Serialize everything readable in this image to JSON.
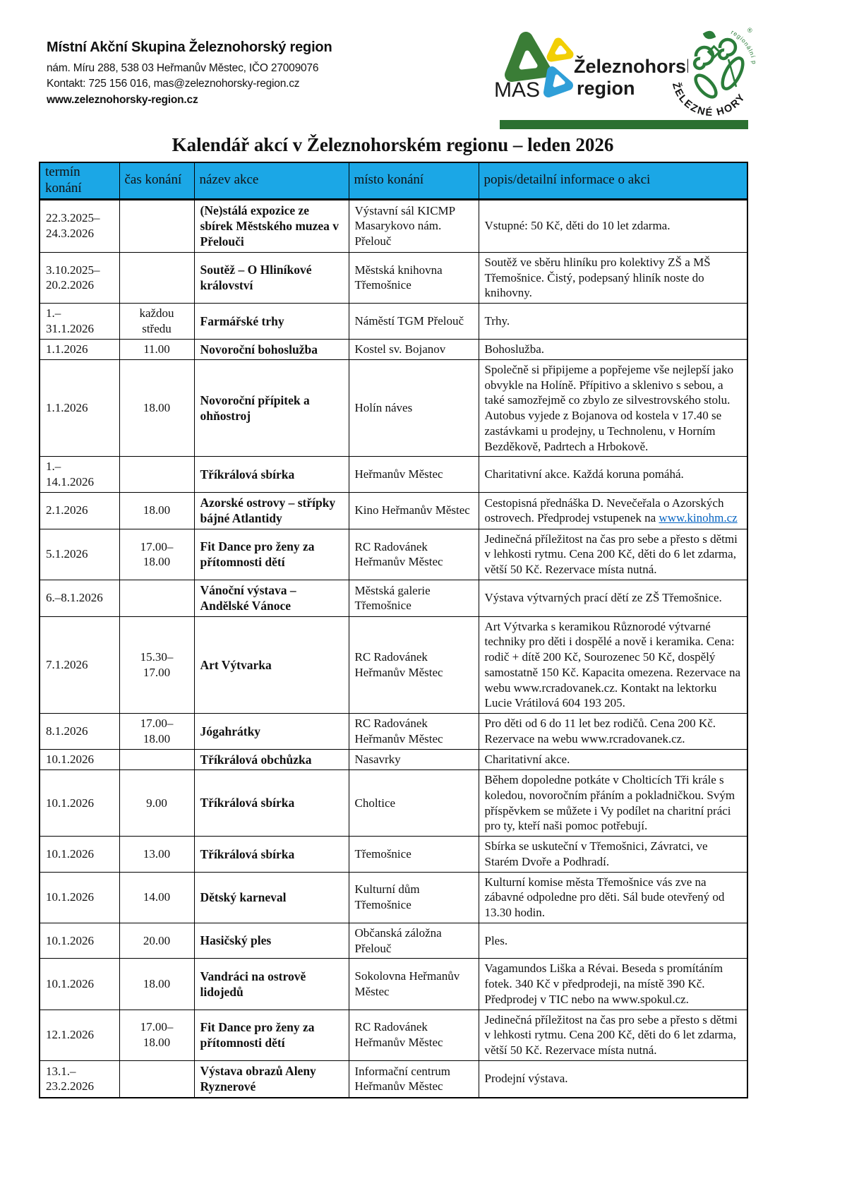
{
  "org": {
    "name": "Místní Akční Skupina Železnohorský region",
    "address": "nám. Míru 288, 538 03 Heřmanův Městec, IČO 27009076",
    "contact": "Kontakt: 725 156 016, mas@zeleznohorsky-region.cz",
    "website": "www.zeleznohorsky-region.cz"
  },
  "logos": {
    "mas": {
      "abbr": "MAS",
      "line1": "Železnohorský",
      "line2": "region",
      "green": "#3a7d36",
      "yellow": "#f2cf05",
      "blue": "#2f9fd8"
    },
    "round": {
      "arc_bottom": "ŽELEZNÉ HORY",
      "arc_top": "regionální produkt",
      "reg_mark": "®",
      "green": "#2b7d3a"
    }
  },
  "colors": {
    "header_bg": "#1ba7e6",
    "divider_green": "#2c7031",
    "link_blue": "#0563c1"
  },
  "title": "Kalendář akcí v Železnohorském regionu – leden 2026",
  "table": {
    "headers": [
      "termín\nkonání",
      "čas konání",
      "název akce",
      "místo konání",
      "popis/detailní informace o akci"
    ],
    "rows": [
      {
        "date": "22.3.2025–\n24.3.2026",
        "time": "",
        "name": "(Ne)stálá expozice ze sbírek Městského muzea v Přelouči",
        "place": "Výstavní sál KICMP Masarykovo nám. Přelouč",
        "desc": "Vstupné: 50 Kč, děti do 10 let zdarma."
      },
      {
        "date": "3.10.2025–\n20.2.2026",
        "time": "",
        "name": "Soutěž – O Hliníkové království",
        "place": "Městská knihovna Třemošnice",
        "desc": "Soutěž ve sběru hliníku pro kolektivy ZŠ a MŠ Třemošnice. Čistý, podepsaný hliník noste do knihovny."
      },
      {
        "date": "1.–\n31.1.2026",
        "time": "každou\nstředu",
        "name": "Farmářské trhy",
        "place": "Náměstí TGM Přelouč",
        "desc": "Trhy."
      },
      {
        "date": "1.1.2026",
        "time": "11.00",
        "name": "Novoroční bohoslužba",
        "place": "Kostel sv. Bojanov",
        "desc": "Bohoslužba."
      },
      {
        "date": "1.1.2026",
        "time": "18.00",
        "name": "Novoroční přípitek a ohňostroj",
        "place": "Holín náves",
        "desc": "Společně si připijeme a popřejeme vše nejlepší jako obvykle na Holíně. Přípitivo a sklenivo s sebou, a také samozřejmě co zbylo ze silvestrovského stolu. Autobus vyjede z Bojanova od kostela v 17.40 se zastávkami u prodejny, u Technolenu, v Horním Bezděkově, Padrtech a Hrbokově."
      },
      {
        "date": "1.–\n14.1.2026",
        "time": "",
        "name": "Tříkrálová sbírka",
        "place": "Heřmanův Městec",
        "desc": "Charitativní akce. Každá koruna pomáhá."
      },
      {
        "date": "2.1.2026",
        "time": "18.00",
        "name": "Azorské ostrovy – střípky bájné Atlantidy",
        "place": "Kino Heřmanův Městec",
        "desc": "Cestopisná přednáška D. Nevečeřala o Azorských ostrovech. Předprodej vstupenek na ",
        "link": "www.kinohm.cz"
      },
      {
        "date": "5.1.2026",
        "time": "17.00–\n18.00",
        "name": "Fit Dance pro ženy za přítomnosti dětí",
        "place": "RC Radovánek Heřmanův Městec",
        "desc": "Jedinečná příležitost na čas pro sebe a přesto s dětmi v lehkosti rytmu. Cena 200 Kč, děti do 6 let zdarma, větší 50 Kč. Rezervace místa nutná."
      },
      {
        "date": "6.–8.1.2026",
        "time": "",
        "name": "Vánoční výstava – Andělské Vánoce",
        "place": "Městská galerie Třemošnice",
        "desc": "Výstava výtvarných prací dětí ze ZŠ Třemošnice."
      },
      {
        "date": "7.1.2026",
        "time": "15.30–\n17.00",
        "name": "Art Výtvarka",
        "place": "RC Radovánek Heřmanův Městec",
        "desc": "Art Výtvarka s keramikou Různorodé výtvarné techniky pro děti i dospělé a nově i keramika. Cena: rodič + dítě 200 Kč, Sourozenec 50 Kč, dospělý samostatně 150 Kč. Kapacita omezena. Rezervace na webu www.rcradovanek.cz. Kontakt na lektorku Lucie Vrátilová 604 193 205."
      },
      {
        "date": "8.1.2026",
        "time": "17.00–\n18.00",
        "name": "Jógahrátky",
        "place": "RC Radovánek Heřmanův Městec",
        "desc": "Pro děti od 6 do 11 let bez rodičů. Cena 200 Kč. Rezervace na webu www.rcradovanek.cz."
      },
      {
        "date": "10.1.2026",
        "time": "",
        "name": "Tříkrálová obchůzka",
        "place": "Nasavrky",
        "desc": "Charitativní akce."
      },
      {
        "date": "10.1.2026",
        "time": "9.00",
        "name": "Tříkrálová sbírka",
        "place": "Choltice",
        "desc": "Během dopoledne potkáte v Cholticích Tři krále s koledou, novoročním přáním a pokladničkou. Svým příspěvkem se můžete i Vy podílet na charitní práci pro ty, kteří naši pomoc potřebují."
      },
      {
        "date": "10.1.2026",
        "time": "13.00",
        "name": "Tříkrálová sbírka",
        "place": "Třemošnice",
        "desc": "Sbírka se uskuteční v Třemošnici, Závratci, ve Starém Dvoře a Podhradí."
      },
      {
        "date": "10.1.2026",
        "time": "14.00",
        "name": "Dětský karneval",
        "place": "Kulturní dům Třemošnice",
        "desc": "Kulturní komise města Třemošnice vás zve na zábavné odpoledne pro děti. Sál bude otevřený od 13.30 hodin."
      },
      {
        "date": "10.1.2026",
        "time": "20.00",
        "name": "Hasičský ples",
        "place": "Občanská záložna Přelouč",
        "desc": "Ples."
      },
      {
        "date": "10.1.2026",
        "time": "18.00",
        "name": "Vandráci na ostrově lidojedů",
        "place": "Sokolovna Heřmanův Městec",
        "desc": "Vagamundos Liška a Révai. Beseda s promítáním fotek. 340 Kč v předprodeji, na místě 390 Kč. Předprodej v TIC nebo na www.spokul.cz."
      },
      {
        "date": "12.1.2026",
        "time": "17.00–\n18.00",
        "name": "Fit Dance pro ženy za přítomnosti dětí",
        "place": "RC Radovánek Heřmanův Městec",
        "desc": "Jedinečná příležitost na čas pro sebe a přesto s dětmi v lehkosti rytmu. Cena 200 Kč, děti do 6 let zdarma, větší 50 Kč. Rezervace místa nutná."
      },
      {
        "date": "13.1.–\n23.2.2026",
        "time": "",
        "name": "Výstava obrazů Aleny Ryznerové",
        "place": "Informační centrum Heřmanův Městec",
        "desc": "Prodejní výstava."
      }
    ]
  }
}
